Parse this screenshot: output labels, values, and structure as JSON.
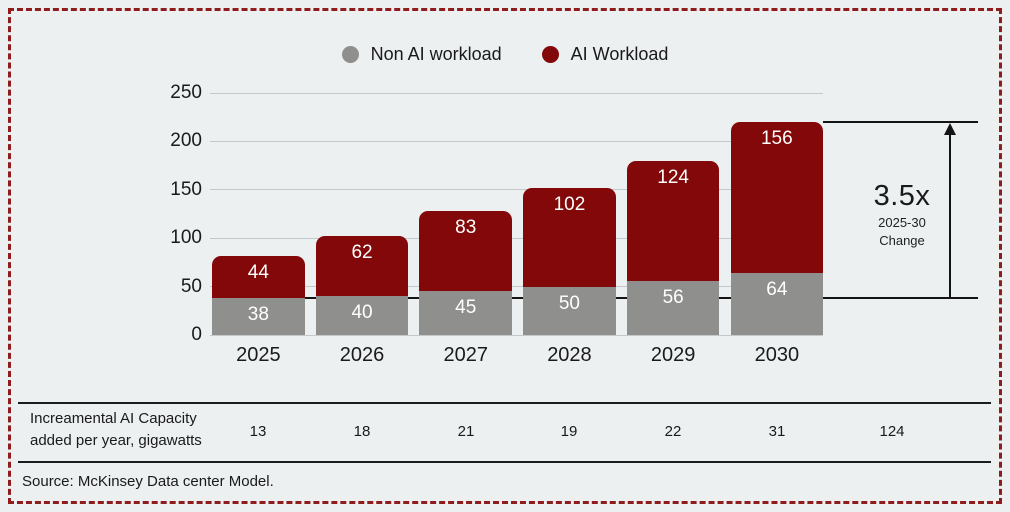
{
  "colors": {
    "background": "#ecf0f1",
    "bar_red": "#820809",
    "bar_gray": "#8f8f8e",
    "border_red": "#8f1d1d",
    "gridline": "#c3c8ca",
    "line": "#141414",
    "bar_label": "#ffffff"
  },
  "legend": [
    {
      "label": "Non AI workload",
      "color": "#8f8f8e"
    },
    {
      "label": "AI Workload",
      "color": "#820809"
    }
  ],
  "chart_data": {
    "type": "bar",
    "stacked": true,
    "categories": [
      "2025",
      "2026",
      "2027",
      "2028",
      "2029",
      "2030"
    ],
    "series": [
      {
        "name": "Non AI workload",
        "color": "#8f8f8e",
        "values": [
          38,
          40,
          45,
          50,
          56,
          64
        ]
      },
      {
        "name": "AI Workload",
        "color": "#820809",
        "values": [
          44,
          62,
          83,
          102,
          124,
          156
        ]
      }
    ],
    "totals": [
      82,
      102,
      128,
      152,
      180,
      220
    ],
    "y_ticks": [
      0,
      50,
      100,
      150,
      200,
      250
    ],
    "ylim": [
      0,
      250
    ],
    "grid": true,
    "legend_position": "top",
    "value_labels": "inside-top, white"
  },
  "annotation": {
    "multiplier": "3.5x",
    "sublabel_line1": "2025-30",
    "sublabel_line2": "Change",
    "arrow_top_value": 220,
    "arrow_bottom_value": 38
  },
  "table": {
    "row_label_line1": "Increamental AI Capacity",
    "row_label_line2": "added per year, gigawatts",
    "values": [
      "13",
      "18",
      "21",
      "19",
      "22",
      "31",
      "124"
    ]
  },
  "source": "Source: McKinsey Data center Model."
}
